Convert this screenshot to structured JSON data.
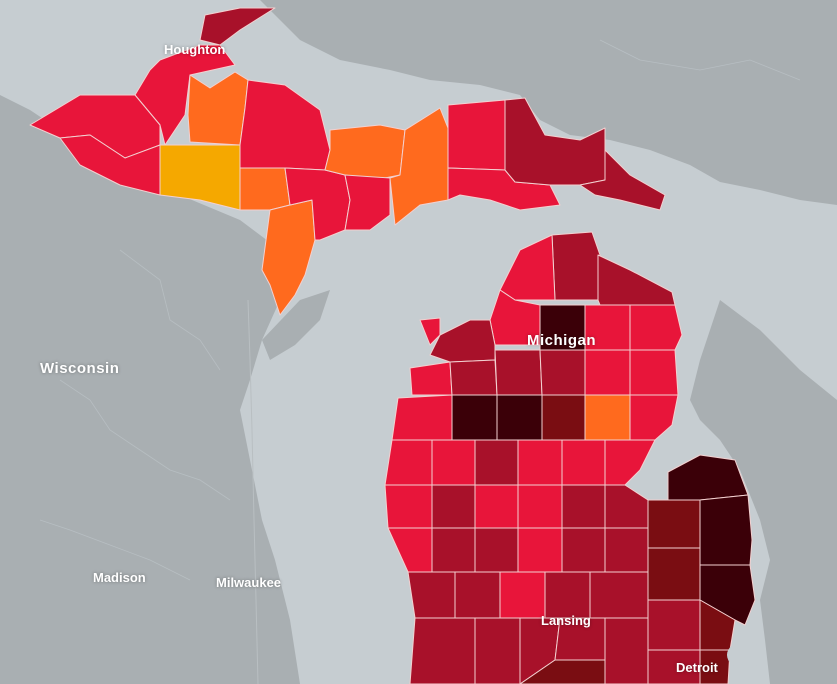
{
  "map": {
    "labels": {
      "houghton": "Houghton",
      "michigan": "Michigan",
      "wisconsin": "Wisconsin",
      "madison": "Madison",
      "milwaukee": "Milwaukee",
      "lansing": "Lansing",
      "detroit": "Detroit"
    },
    "colors": {
      "water": "#c6cdd1",
      "land_other": "#a9afb2",
      "county_border": "#f3d0d0",
      "scale": [
        "#f5a800",
        "#ff6a1e",
        "#e8153a",
        "#a8112a",
        "#7a0d12",
        "#3b0008"
      ]
    }
  }
}
